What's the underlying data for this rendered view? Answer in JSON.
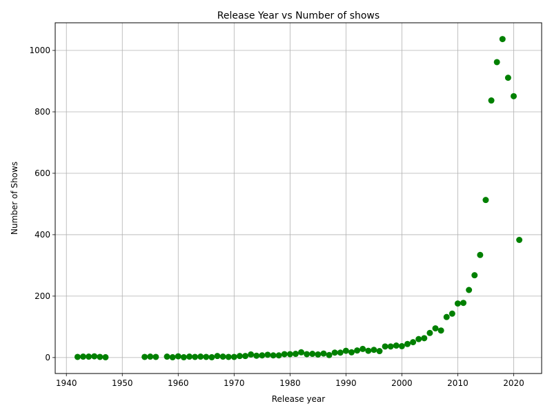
{
  "chart_data": {
    "type": "scatter",
    "title": "Release Year vs Number of shows",
    "xlabel": "Release year",
    "ylabel": "Number of Shows",
    "xlim": [
      1938,
      2025
    ],
    "ylim": [
      -52,
      1090
    ],
    "xticks": [
      1940,
      1950,
      1960,
      1970,
      1980,
      1990,
      2000,
      2010,
      2020
    ],
    "yticks": [
      0,
      200,
      400,
      600,
      800,
      1000
    ],
    "grid": true,
    "marker_color": "#008000",
    "points": [
      {
        "x": 1942,
        "y": 2
      },
      {
        "x": 1943,
        "y": 3
      },
      {
        "x": 1944,
        "y": 3
      },
      {
        "x": 1945,
        "y": 4
      },
      {
        "x": 1946,
        "y": 2
      },
      {
        "x": 1947,
        "y": 1
      },
      {
        "x": 1954,
        "y": 2
      },
      {
        "x": 1955,
        "y": 3
      },
      {
        "x": 1956,
        "y": 2
      },
      {
        "x": 1958,
        "y": 3
      },
      {
        "x": 1959,
        "y": 1
      },
      {
        "x": 1960,
        "y": 4
      },
      {
        "x": 1961,
        "y": 1
      },
      {
        "x": 1962,
        "y": 3
      },
      {
        "x": 1963,
        "y": 2
      },
      {
        "x": 1964,
        "y": 3
      },
      {
        "x": 1965,
        "y": 2
      },
      {
        "x": 1966,
        "y": 1
      },
      {
        "x": 1967,
        "y": 5
      },
      {
        "x": 1968,
        "y": 3
      },
      {
        "x": 1969,
        "y": 2
      },
      {
        "x": 1970,
        "y": 2
      },
      {
        "x": 1971,
        "y": 5
      },
      {
        "x": 1972,
        "y": 5
      },
      {
        "x": 1973,
        "y": 10
      },
      {
        "x": 1974,
        "y": 6
      },
      {
        "x": 1975,
        "y": 7
      },
      {
        "x": 1976,
        "y": 9
      },
      {
        "x": 1977,
        "y": 7
      },
      {
        "x": 1978,
        "y": 7
      },
      {
        "x": 1979,
        "y": 11
      },
      {
        "x": 1980,
        "y": 11
      },
      {
        "x": 1981,
        "y": 12
      },
      {
        "x": 1982,
        "y": 17
      },
      {
        "x": 1983,
        "y": 11
      },
      {
        "x": 1984,
        "y": 12
      },
      {
        "x": 1985,
        "y": 10
      },
      {
        "x": 1986,
        "y": 13
      },
      {
        "x": 1987,
        "y": 8
      },
      {
        "x": 1988,
        "y": 16
      },
      {
        "x": 1989,
        "y": 16
      },
      {
        "x": 1990,
        "y": 22
      },
      {
        "x": 1991,
        "y": 17
      },
      {
        "x": 1992,
        "y": 23
      },
      {
        "x": 1993,
        "y": 28
      },
      {
        "x": 1994,
        "y": 22
      },
      {
        "x": 1995,
        "y": 25
      },
      {
        "x": 1996,
        "y": 21
      },
      {
        "x": 1997,
        "y": 36
      },
      {
        "x": 1998,
        "y": 36
      },
      {
        "x": 1999,
        "y": 39
      },
      {
        "x": 2000,
        "y": 37
      },
      {
        "x": 2001,
        "y": 44
      },
      {
        "x": 2002,
        "y": 50
      },
      {
        "x": 2003,
        "y": 60
      },
      {
        "x": 2004,
        "y": 63
      },
      {
        "x": 2005,
        "y": 80
      },
      {
        "x": 2006,
        "y": 95
      },
      {
        "x": 2007,
        "y": 88
      },
      {
        "x": 2008,
        "y": 132
      },
      {
        "x": 2009,
        "y": 143
      },
      {
        "x": 2010,
        "y": 176
      },
      {
        "x": 2011,
        "y": 178
      },
      {
        "x": 2012,
        "y": 220
      },
      {
        "x": 2013,
        "y": 268
      },
      {
        "x": 2014,
        "y": 334
      },
      {
        "x": 2015,
        "y": 513
      },
      {
        "x": 2016,
        "y": 837
      },
      {
        "x": 2017,
        "y": 962
      },
      {
        "x": 2018,
        "y": 1037
      },
      {
        "x": 2019,
        "y": 911
      },
      {
        "x": 2020,
        "y": 851
      },
      {
        "x": 2021,
        "y": 383
      }
    ]
  }
}
